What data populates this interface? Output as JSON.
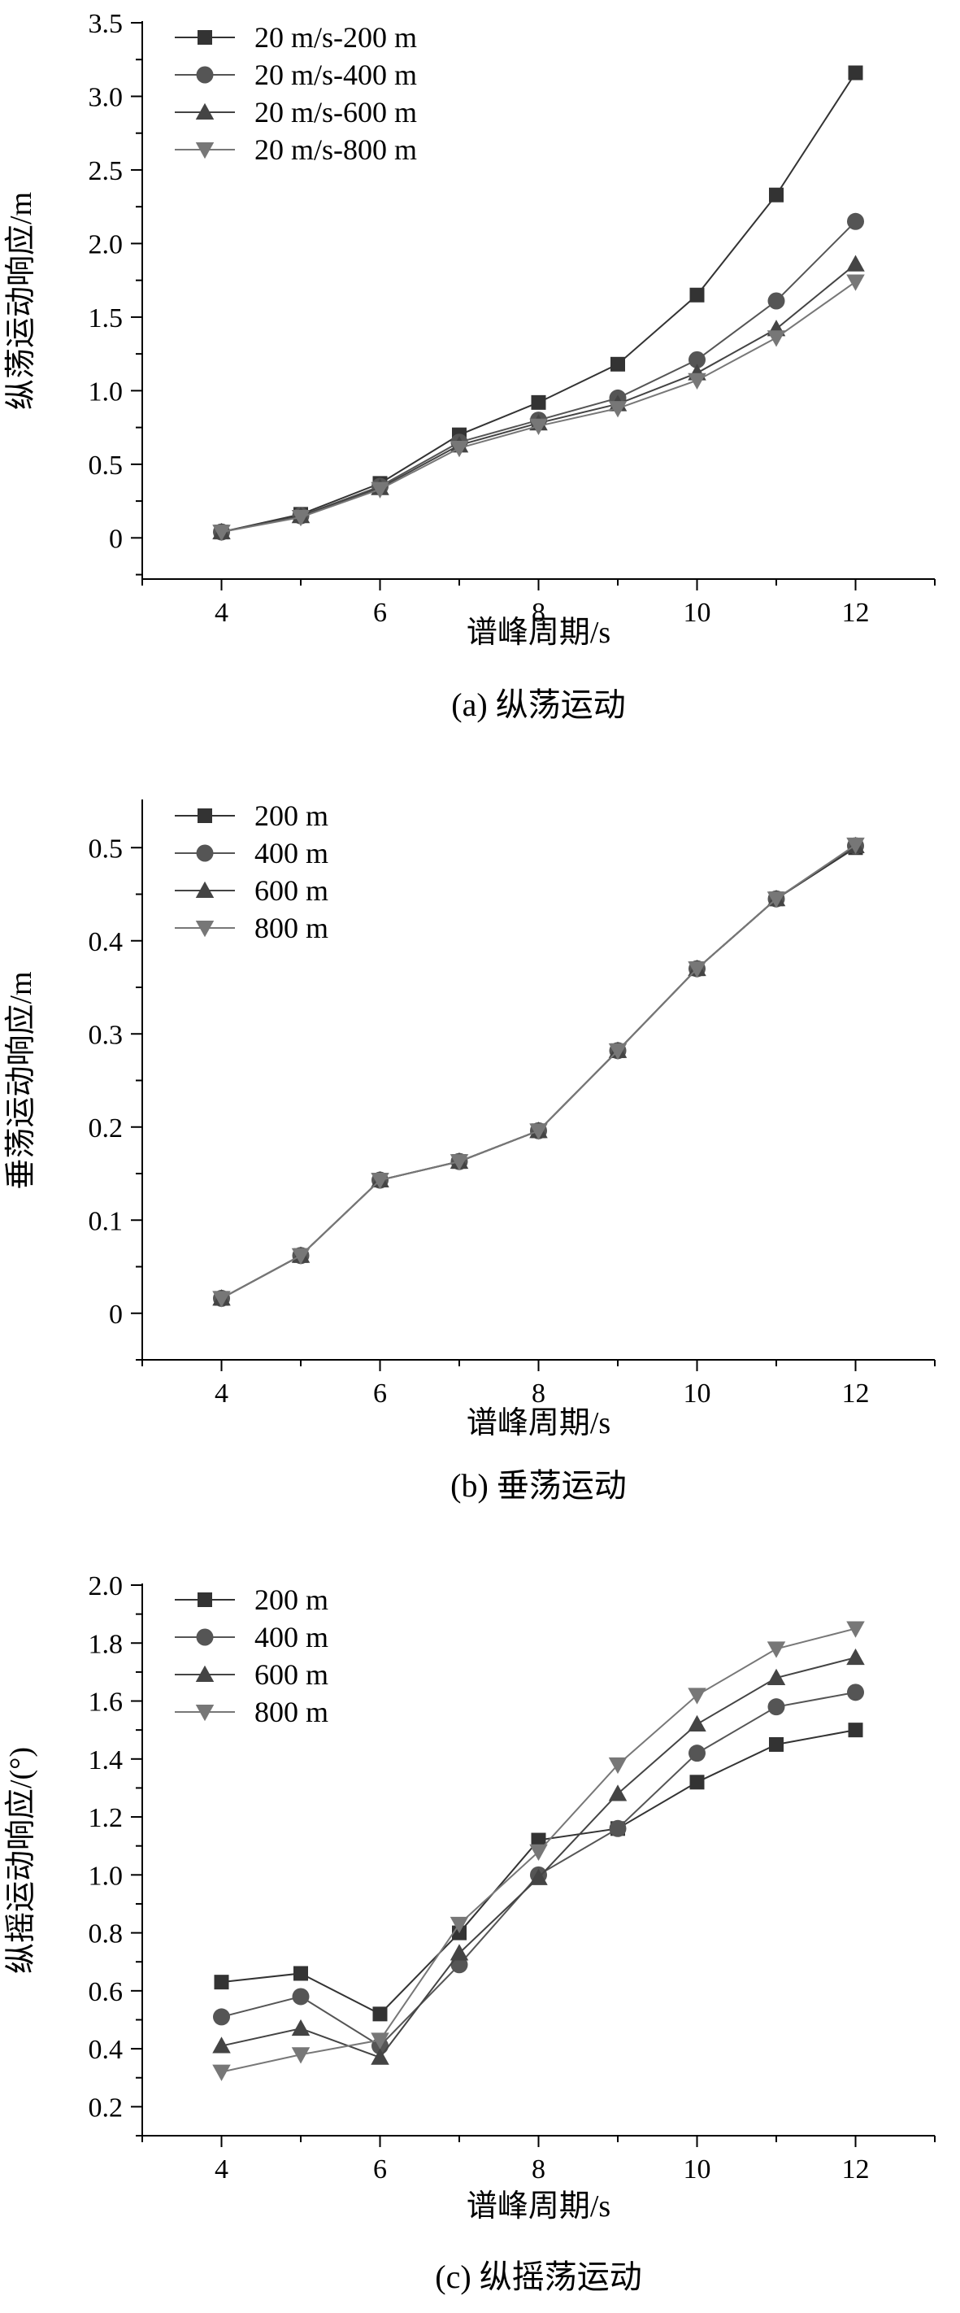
{
  "chart_data": [
    {
      "type": "line",
      "caption": "(a) 纵荡运动",
      "xlabel": "谱峰周期/s",
      "ylabel": "纵荡运动响应/m",
      "xlim": [
        3,
        13
      ],
      "ylim": [
        -0.28,
        3.5
      ],
      "xticks": [
        4,
        6,
        8,
        10,
        12
      ],
      "yticks": [
        0,
        0.5,
        1.0,
        1.5,
        2.0,
        2.5,
        3.0,
        3.5
      ],
      "ytick_labels": [
        "0",
        "0.5",
        "1.0",
        "1.5",
        "2.0",
        "2.5",
        "3.0",
        "3.5"
      ],
      "legend_position": "top-left",
      "x": [
        4,
        5,
        6,
        7,
        8,
        9,
        10,
        11,
        12
      ],
      "series": [
        {
          "name": "20 m/s-200 m",
          "marker": "square",
          "color": "#333333",
          "values": [
            0.04,
            0.16,
            0.37,
            0.7,
            0.92,
            1.18,
            1.65,
            2.33,
            3.16
          ]
        },
        {
          "name": "20 m/s-400 m",
          "marker": "circle",
          "color": "#555555",
          "values": [
            0.04,
            0.15,
            0.35,
            0.65,
            0.8,
            0.95,
            1.21,
            1.61,
            2.15
          ]
        },
        {
          "name": "20 m/s-600 m",
          "marker": "triangle-up",
          "color": "#444444",
          "values": [
            0.04,
            0.15,
            0.34,
            0.63,
            0.78,
            0.91,
            1.12,
            1.42,
            1.86
          ]
        },
        {
          "name": "20 m/s-800 m",
          "marker": "triangle-down",
          "color": "#777777",
          "values": [
            0.04,
            0.14,
            0.33,
            0.61,
            0.76,
            0.88,
            1.07,
            1.36,
            1.74
          ]
        }
      ]
    },
    {
      "type": "line",
      "caption": "(b) 垂荡运动",
      "xlabel": "谱峰周期/s",
      "ylabel": "垂荡运动响应/m",
      "xlim": [
        3,
        13
      ],
      "ylim": [
        -0.05,
        0.55
      ],
      "xticks": [
        4,
        6,
        8,
        10,
        12
      ],
      "yticks": [
        0,
        0.1,
        0.2,
        0.3,
        0.4,
        0.5
      ],
      "ytick_labels": [
        "0",
        "0.1",
        "0.2",
        "0.3",
        "0.4",
        "0.5"
      ],
      "legend_position": "top-left",
      "x": [
        4,
        5,
        6,
        7,
        8,
        9,
        10,
        11,
        12
      ],
      "series": [
        {
          "name": "200 m",
          "marker": "square",
          "color": "#333333",
          "values": [
            0.016,
            0.062,
            0.143,
            0.163,
            0.196,
            0.282,
            0.37,
            0.445,
            0.5
          ]
        },
        {
          "name": "400 m",
          "marker": "circle",
          "color": "#555555",
          "values": [
            0.016,
            0.062,
            0.143,
            0.163,
            0.196,
            0.282,
            0.37,
            0.445,
            0.502
          ]
        },
        {
          "name": "600 m",
          "marker": "triangle-up",
          "color": "#444444",
          "values": [
            0.016,
            0.062,
            0.143,
            0.163,
            0.196,
            0.282,
            0.37,
            0.445,
            0.502
          ]
        },
        {
          "name": "800 m",
          "marker": "triangle-down",
          "color": "#777777",
          "values": [
            0.016,
            0.062,
            0.143,
            0.163,
            0.196,
            0.282,
            0.37,
            0.445,
            0.503
          ]
        }
      ]
    },
    {
      "type": "line",
      "caption": "(c) 纵摇荡运动",
      "xlabel": "谱峰周期/s",
      "ylabel": "纵摇运动响应/(°)",
      "xlim": [
        3,
        13
      ],
      "ylim": [
        0.1,
        2.0
      ],
      "xticks": [
        4,
        6,
        8,
        10,
        12
      ],
      "yticks": [
        0.2,
        0.4,
        0.6,
        0.8,
        1.0,
        1.2,
        1.4,
        1.6,
        1.8,
        2.0
      ],
      "ytick_labels": [
        "0.2",
        "0.4",
        "0.6",
        "0.8",
        "1.0",
        "1.2",
        "1.4",
        "1.6",
        "1.8",
        "2.0"
      ],
      "legend_position": "top-left",
      "x": [
        4,
        5,
        6,
        7,
        8,
        9,
        10,
        11,
        12
      ],
      "series": [
        {
          "name": "200 m",
          "marker": "square",
          "color": "#333333",
          "values": [
            0.63,
            0.66,
            0.52,
            0.8,
            1.12,
            1.16,
            1.32,
            1.45,
            1.5
          ]
        },
        {
          "name": "400 m",
          "marker": "circle",
          "color": "#555555",
          "values": [
            0.51,
            0.58,
            0.41,
            0.69,
            1.0,
            1.16,
            1.42,
            1.58,
            1.63
          ]
        },
        {
          "name": "600 m",
          "marker": "triangle-up",
          "color": "#444444",
          "values": [
            0.41,
            0.47,
            0.37,
            0.73,
            0.99,
            1.28,
            1.52,
            1.68,
            1.75
          ]
        },
        {
          "name": "800 m",
          "marker": "triangle-down",
          "color": "#777777",
          "values": [
            0.32,
            0.38,
            0.43,
            0.83,
            1.08,
            1.38,
            1.62,
            1.78,
            1.85
          ]
        }
      ]
    }
  ]
}
